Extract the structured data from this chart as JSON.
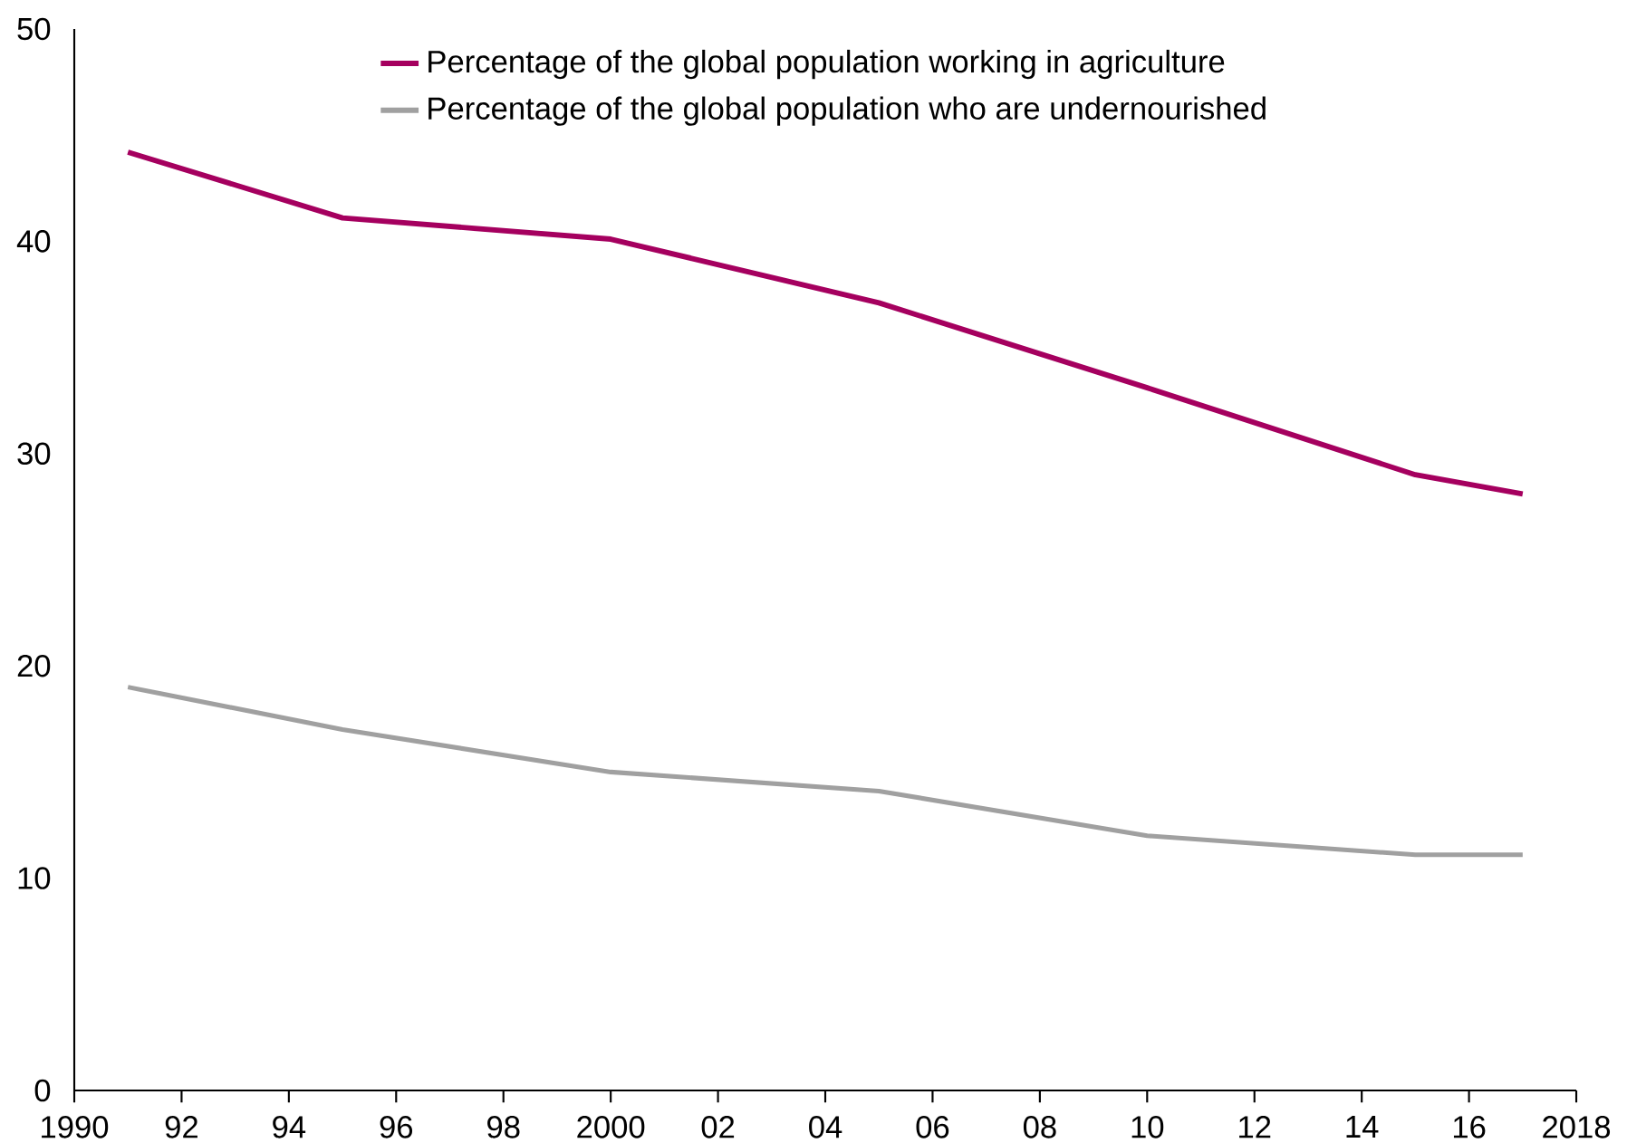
{
  "chart_data": {
    "type": "line",
    "x": [
      1991,
      1995,
      2000,
      2005,
      2010,
      2015,
      2017
    ],
    "series": [
      {
        "name": "Percentage of the global population working in agriculture",
        "color": "#a5005f",
        "values": [
          44.2,
          41.1,
          40.1,
          37.1,
          33.1,
          29.0,
          28.1
        ]
      },
      {
        "name": "Percentage of the global population who are undernourished",
        "color": "#a0a0a0",
        "values": [
          19.0,
          17.0,
          15.0,
          14.1,
          12.0,
          11.1,
          11.1
        ]
      }
    ],
    "xlim": [
      1990,
      2018
    ],
    "xticks": [
      {
        "value": 1990,
        "label": "1990"
      },
      {
        "value": 1992,
        "label": "92"
      },
      {
        "value": 1994,
        "label": "94"
      },
      {
        "value": 1996,
        "label": "96"
      },
      {
        "value": 1998,
        "label": "98"
      },
      {
        "value": 2000,
        "label": "2000"
      },
      {
        "value": 2002,
        "label": "02"
      },
      {
        "value": 2004,
        "label": "04"
      },
      {
        "value": 2006,
        "label": "06"
      },
      {
        "value": 2008,
        "label": "08"
      },
      {
        "value": 2010,
        "label": "10"
      },
      {
        "value": 2012,
        "label": "12"
      },
      {
        "value": 2014,
        "label": "14"
      },
      {
        "value": 2016,
        "label": "16"
      },
      {
        "value": 2018,
        "label": "2018"
      }
    ],
    "ylim": [
      0,
      50
    ],
    "yticks": [
      0,
      10,
      20,
      30,
      40,
      50
    ],
    "grid": false,
    "legend": "top",
    "marker": "none",
    "line_style": "solid"
  }
}
